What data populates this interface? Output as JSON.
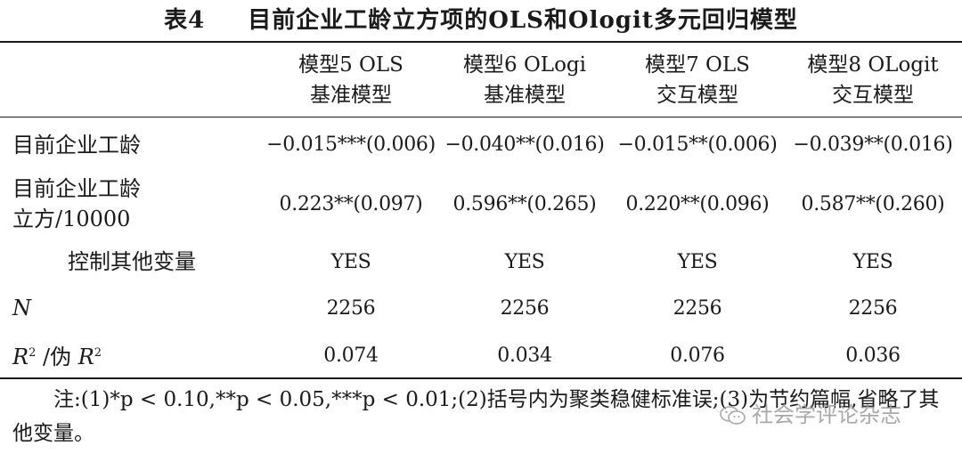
{
  "caption": {
    "number": "表4",
    "title": "目前企业工龄立方项的OLS和Ologit多元回归模型"
  },
  "columns": [
    {
      "line1": "模型5 OLS",
      "line2": "基准模型"
    },
    {
      "line1": "模型6 OLogi",
      "line2": "基准模型"
    },
    {
      "line1": "模型7 OLS",
      "line2": "交互模型"
    },
    {
      "line1": "模型8 OLogit",
      "line2": "交互模型"
    }
  ],
  "rows": [
    {
      "label": "目前企业工龄",
      "values": [
        "−0.015***(0.006)",
        "−0.040**(0.016)",
        "−0.015**(0.006)",
        "−0.039**(0.016)"
      ]
    },
    {
      "label_line1": "目前企业工龄",
      "label_line2": "立方/10000",
      "values": [
        "0.223**(0.097)",
        "0.596**(0.265)",
        "0.220**(0.096)",
        "0.587**(0.260)"
      ]
    },
    {
      "label": "控制其他变量",
      "values": [
        "YES",
        "YES",
        "YES",
        "YES"
      ]
    },
    {
      "label": "N",
      "values": [
        "2256",
        "2256",
        "2256",
        "2256"
      ]
    },
    {
      "label_r": "R",
      "label_sup": "2",
      "label_mid": " /伪 ",
      "label_r2": "R",
      "label_sup2": "2",
      "values": [
        "0.074",
        "0.034",
        "0.076",
        "0.036"
      ]
    }
  ],
  "note": {
    "text": "注:(1)*p < 0.10,**p < 0.05,***p < 0.01;(2)括号内为聚类稳健标准误;(3)为节约篇幅,省略了其他变量。"
  },
  "watermark": {
    "text": "社会学评论杂志",
    "icon": "wechat-icon"
  }
}
